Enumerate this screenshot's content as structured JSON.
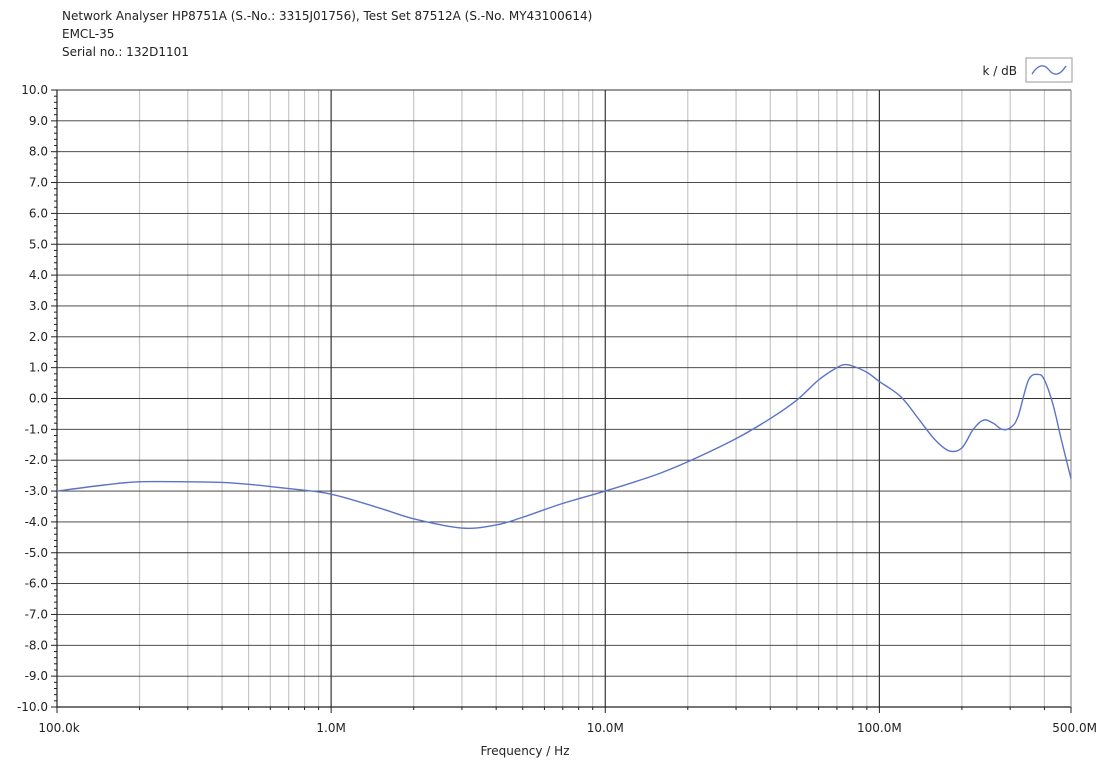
{
  "header": {
    "line1": "Network Analyser HP8751A (S.-No.: 3315J01756), Test Set 87512A (S.-No. MY43100614)",
    "line2": "EMCL-35",
    "line3": "Serial no.: 132D1101"
  },
  "colors": {
    "trace": "#5b73c8",
    "grid": "#c8c8c8",
    "major_grid": "#333333"
  },
  "chart_data": {
    "type": "line",
    "title": "",
    "xlabel": "Frequency / Hz",
    "ylabel": "",
    "xscale": "log",
    "xlim": [
      100000,
      500000000
    ],
    "ylim": [
      -10,
      10
    ],
    "grid": true,
    "legend": {
      "position": "top-right",
      "entries": [
        "k / dB"
      ]
    },
    "x_tick_labels": [
      "100.0k",
      "1.0M",
      "10.0M",
      "100.0M",
      "500.0M"
    ],
    "x_tick_values": [
      100000,
      1000000,
      10000000,
      100000000,
      500000000
    ],
    "y_tick_labels": [
      "10.0",
      "9.0",
      "8.0",
      "7.0",
      "6.0",
      "5.0",
      "4.0",
      "3.0",
      "2.0",
      "1.0",
      "0.0",
      "-1.0",
      "-2.0",
      "-3.0",
      "-4.0",
      "-5.0",
      "-6.0",
      "-7.0",
      "-8.0",
      "-9.0",
      "-10.0"
    ],
    "y_tick_values": [
      10,
      9,
      8,
      7,
      6,
      5,
      4,
      3,
      2,
      1,
      0,
      -1,
      -2,
      -3,
      -4,
      -5,
      -6,
      -7,
      -8,
      -9,
      -10
    ],
    "series": [
      {
        "name": "k / dB",
        "x": [
          100000,
          150000,
          200000,
          300000,
          400000,
          500000,
          700000,
          1000000,
          1500000,
          2000000,
          3000000,
          4000000,
          5000000,
          7000000,
          10000000,
          15000000,
          20000000,
          30000000,
          40000000,
          50000000,
          60000000,
          70000000,
          75000000,
          80000000,
          90000000,
          100000000,
          120000000,
          140000000,
          160000000,
          180000000,
          200000000,
          220000000,
          240000000,
          260000000,
          280000000,
          300000000,
          320000000,
          350000000,
          380000000,
          400000000,
          430000000,
          460000000,
          500000000
        ],
        "y": [
          -3.0,
          -2.8,
          -2.7,
          -2.7,
          -2.72,
          -2.78,
          -2.92,
          -3.1,
          -3.55,
          -3.9,
          -4.2,
          -4.1,
          -3.85,
          -3.4,
          -3.0,
          -2.5,
          -2.05,
          -1.3,
          -0.65,
          -0.05,
          0.6,
          1.0,
          1.1,
          1.05,
          0.85,
          0.55,
          0.05,
          -0.7,
          -1.35,
          -1.7,
          -1.6,
          -1.0,
          -0.7,
          -0.8,
          -1.0,
          -0.95,
          -0.6,
          0.6,
          0.78,
          0.6,
          -0.2,
          -1.3,
          -2.6
        ]
      }
    ]
  }
}
